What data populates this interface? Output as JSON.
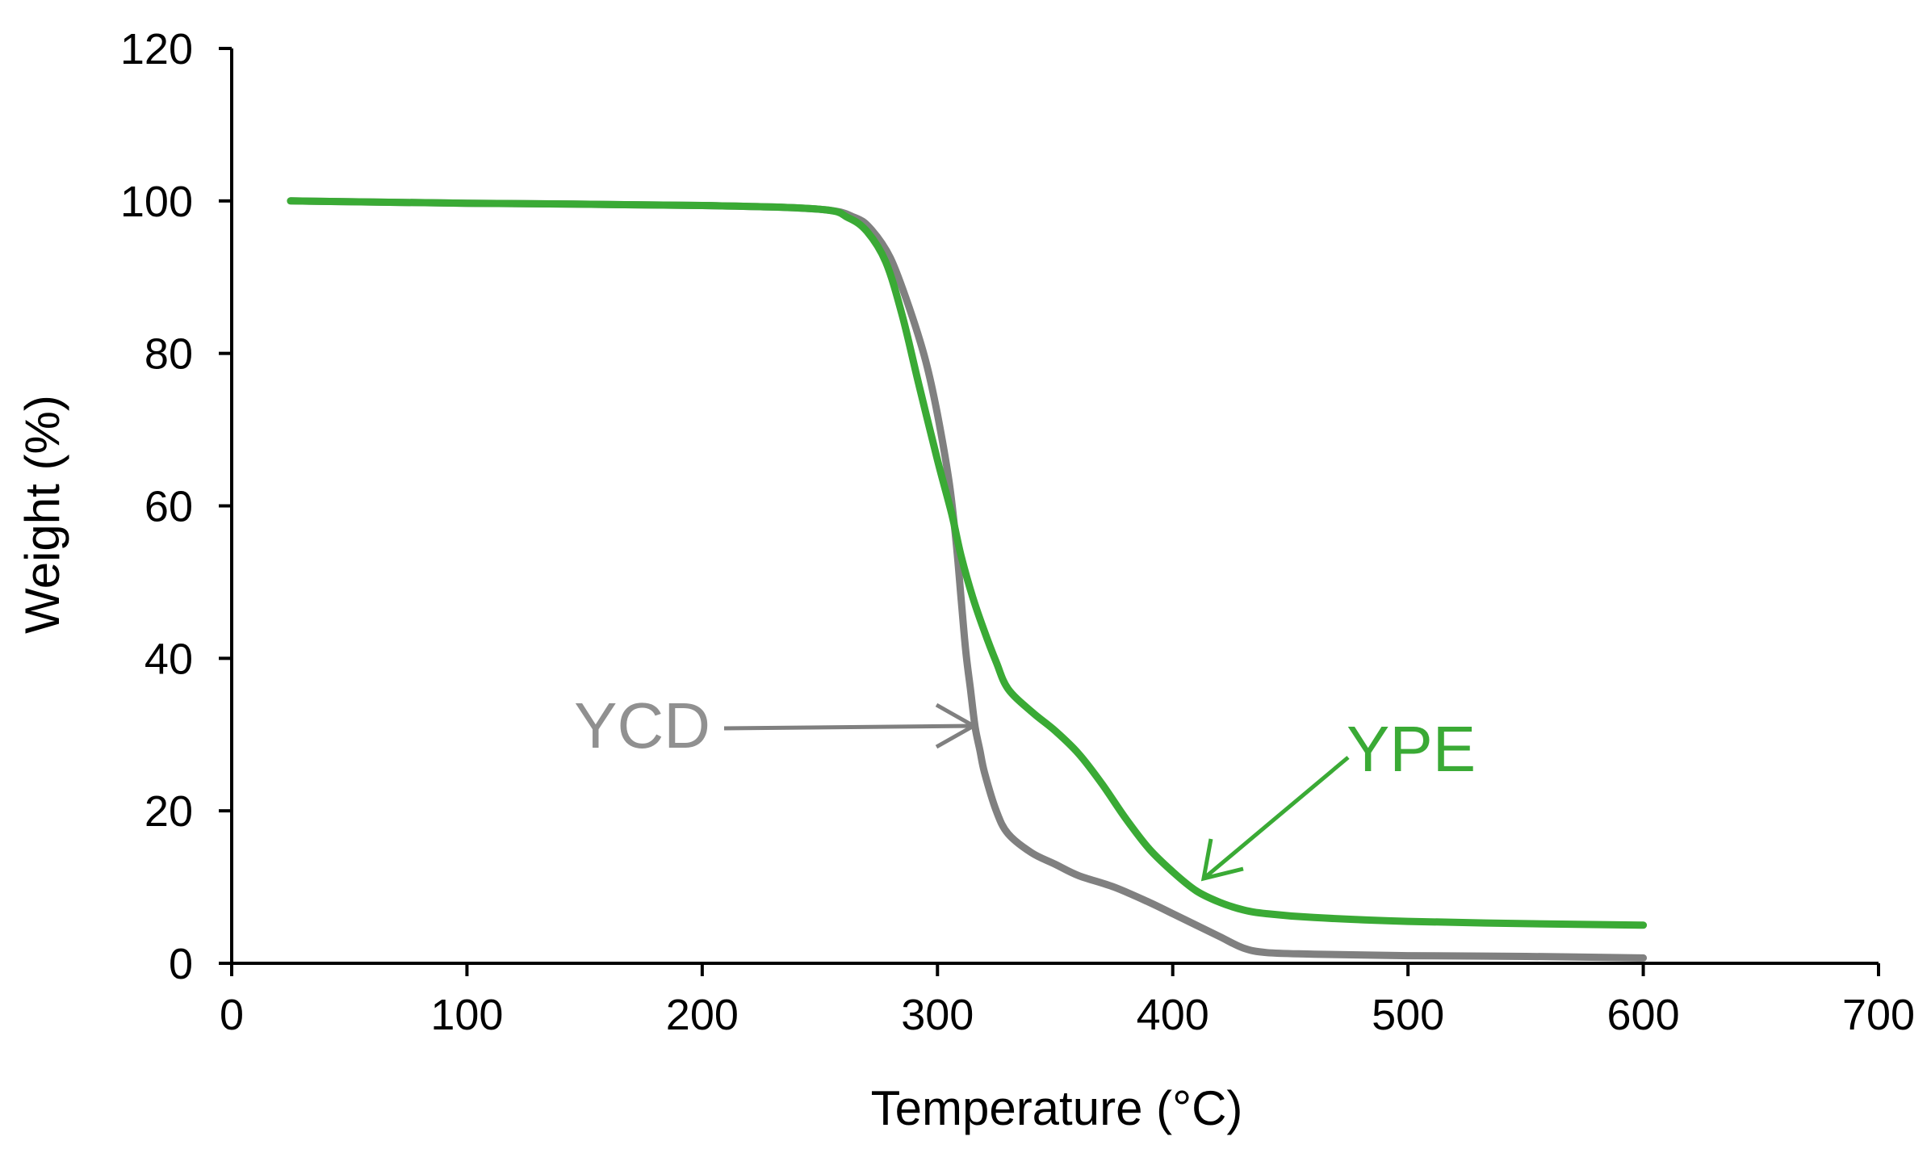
{
  "chart_data": {
    "type": "line",
    "title": "",
    "xlabel": "Temperature  (°C)",
    "ylabel": "Weight  (%)",
    "xlim": [
      0,
      700
    ],
    "ylim": [
      0,
      120
    ],
    "xticks": [
      0,
      100,
      200,
      300,
      400,
      500,
      600,
      700
    ],
    "yticks": [
      0,
      20,
      40,
      60,
      80,
      100,
      120
    ],
    "grid": false,
    "legend": "none",
    "series": [
      {
        "name": "YCD",
        "color": "#808080",
        "x": [
          25,
          100,
          200,
          250,
          265,
          272,
          280,
          288,
          295,
          300,
          305,
          308,
          310,
          312,
          314,
          316,
          318,
          320,
          325,
          330,
          340,
          350,
          360,
          375,
          390,
          400,
          410,
          420,
          430,
          440,
          460,
          500,
          550,
          600
        ],
        "y": [
          100,
          99.7,
          99.4,
          98.9,
          97.8,
          96.2,
          92.5,
          86,
          79,
          72,
          63,
          55,
          48,
          41,
          36,
          31,
          28,
          25,
          20,
          17,
          14.5,
          13,
          11.5,
          10,
          8,
          6.5,
          5,
          3.5,
          2,
          1.4,
          1.2,
          1.0,
          0.9,
          0.7
        ]
      },
      {
        "name": "YPE",
        "color": "#3aaa35",
        "x": [
          25,
          100,
          200,
          250,
          262,
          270,
          278,
          285,
          292,
          300,
          306,
          310,
          315,
          320,
          325,
          330,
          340,
          350,
          360,
          370,
          380,
          390,
          400,
          410,
          420,
          430,
          440,
          460,
          500,
          550,
          600
        ],
        "y": [
          100,
          99.7,
          99.4,
          98.9,
          97.8,
          96,
          92,
          85,
          76,
          66,
          59,
          53.5,
          48,
          43.5,
          39.5,
          36,
          33,
          30.5,
          27.5,
          23.5,
          19,
          15,
          12,
          9.5,
          8,
          7,
          6.5,
          6,
          5.5,
          5.2,
          5
        ]
      }
    ],
    "annotations": [
      {
        "text": "YCD",
        "color": "#909090",
        "points_to_x": 316,
        "points_to_y": 31
      },
      {
        "text": "YPE",
        "color": "#3aaa35",
        "points_to_x": 410,
        "points_to_y": 11
      }
    ]
  }
}
